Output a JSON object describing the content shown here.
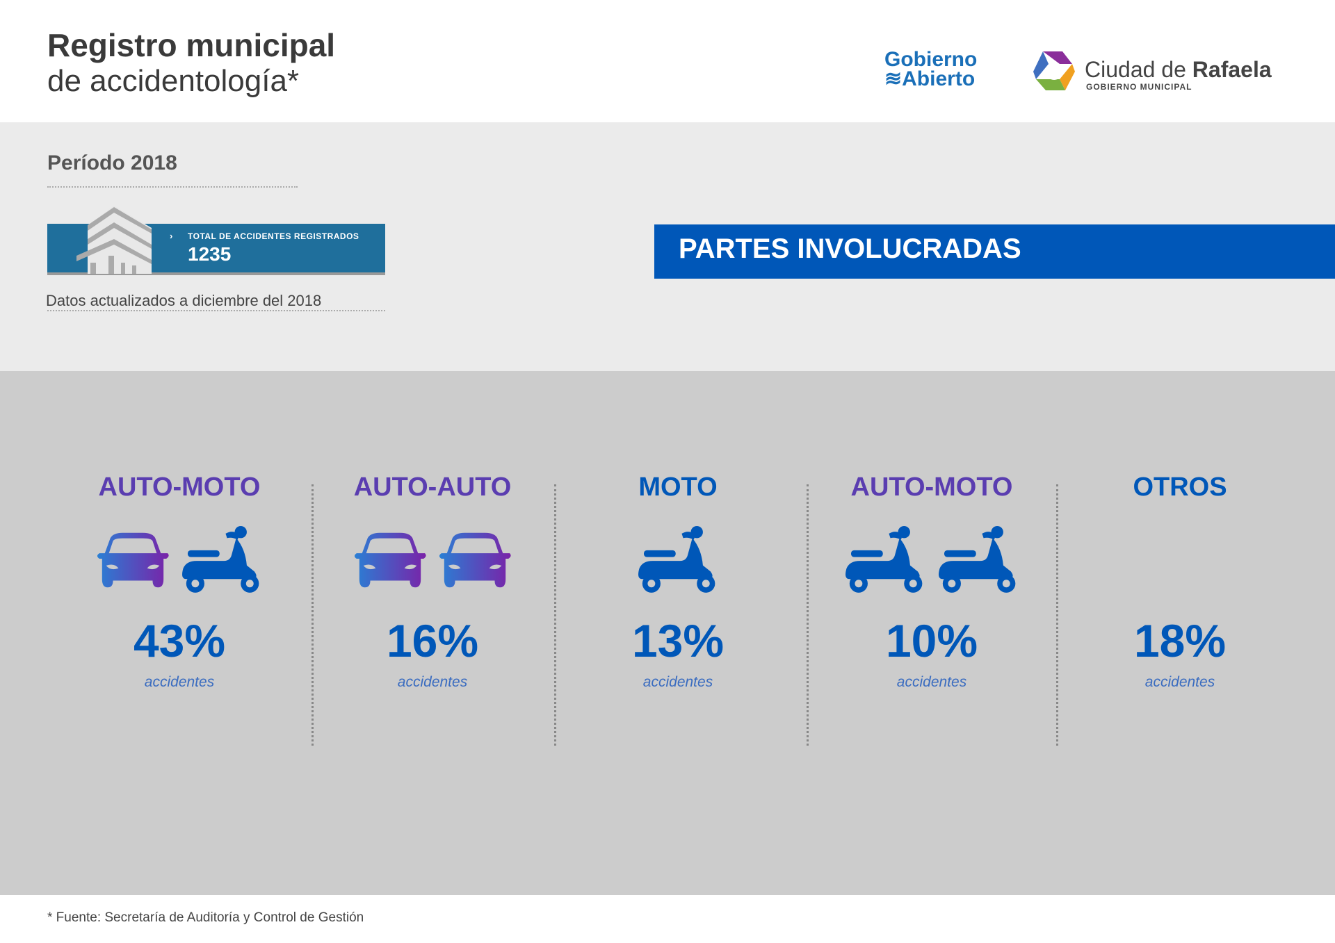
{
  "header": {
    "title_line1": "Registro municipal",
    "title_line2": "de accidentología*",
    "logo_gobierno": "Gobierno",
    "logo_abierto": "Abierto",
    "logo_ciudad": "Ciudad de ",
    "logo_rafaela": "Rafaela",
    "logo_sub": "GOBIERNO MUNICIPAL"
  },
  "summary": {
    "period": "Período 2018",
    "total_label": "TOTAL DE ACCIDENTES REGISTRADOS",
    "total_value": "1235",
    "updated": "Datos actualizados a diciembre del 2018"
  },
  "section_title": "PARTES INVOLUCRADAS",
  "colors": {
    "accent": "#0057b8",
    "heading": "#5a3db0",
    "box": "#1f6f9c"
  },
  "categories": [
    {
      "label": "AUTO-MOTO",
      "icons": [
        "car-icon",
        "scooter-icon"
      ],
      "percent": "43%",
      "unit": "accidentes"
    },
    {
      "label": "AUTO-AUTO",
      "icons": [
        "car-icon",
        "car-icon"
      ],
      "percent": "16%",
      "unit": "accidentes"
    },
    {
      "label": "MOTO",
      "icons": [
        "scooter-icon"
      ],
      "percent": "13%",
      "unit": "accidentes"
    },
    {
      "label": "AUTO-MOTO",
      "icons": [
        "scooter-icon",
        "scooter-icon"
      ],
      "percent": "10%",
      "unit": "accidentes"
    },
    {
      "label": "OTROS",
      "icons": [],
      "percent": "18%",
      "unit": "accidentes"
    }
  ],
  "footer": "* Fuente:  Secretaría de Auditoría y Control de Gestión"
}
